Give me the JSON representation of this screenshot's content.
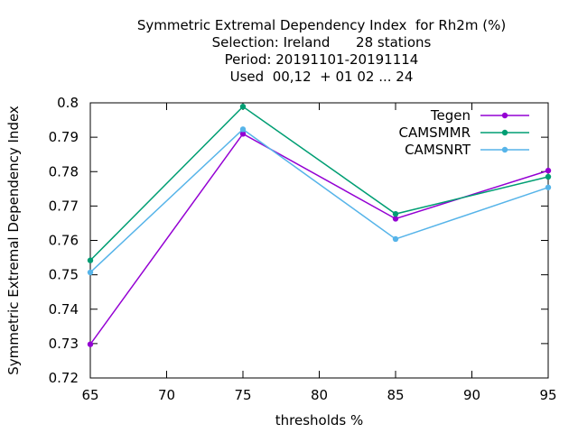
{
  "chart_data": {
    "type": "line",
    "title_lines": [
      "Symmetric Extremal Dependency Index  for Rh2m (%)",
      "Selection: Ireland      28 stations",
      "Period: 20191101-20191114",
      "Used  00,12  + 01 02 ... 24"
    ],
    "xlabel": "thresholds %",
    "ylabel": "Symmetric Extremal Dependency Index",
    "xlim": [
      65,
      95
    ],
    "ylim": [
      0.72,
      0.8
    ],
    "xticks": [
      65,
      70,
      75,
      80,
      85,
      90,
      95
    ],
    "yticks": [
      0.72,
      0.73,
      0.74,
      0.75,
      0.76,
      0.77,
      0.78,
      0.79,
      0.8
    ],
    "xtick_labels": [
      "65",
      "70",
      "75",
      "80",
      "85",
      "90",
      "95"
    ],
    "ytick_labels": [
      "0.72",
      "0.73",
      "0.74",
      "0.75",
      "0.76",
      "0.77",
      "0.78",
      "0.79",
      "0.8"
    ],
    "grid": false,
    "legend_position": "top-right",
    "series": [
      {
        "name": "Tegen",
        "color": "#9400d3",
        "x": [
          65,
          75,
          85,
          95
        ],
        "y": [
          0.7298,
          0.791,
          0.7663,
          0.7803
        ]
      },
      {
        "name": "CAMSMMR",
        "color": "#009e73",
        "x": [
          65,
          75,
          85,
          95
        ],
        "y": [
          0.7542,
          0.7989,
          0.7677,
          0.7785
        ]
      },
      {
        "name": "CAMSNRT",
        "color": "#56b4e9",
        "x": [
          65,
          75,
          85,
          95
        ],
        "y": [
          0.7507,
          0.7923,
          0.7604,
          0.7754
        ]
      }
    ]
  }
}
